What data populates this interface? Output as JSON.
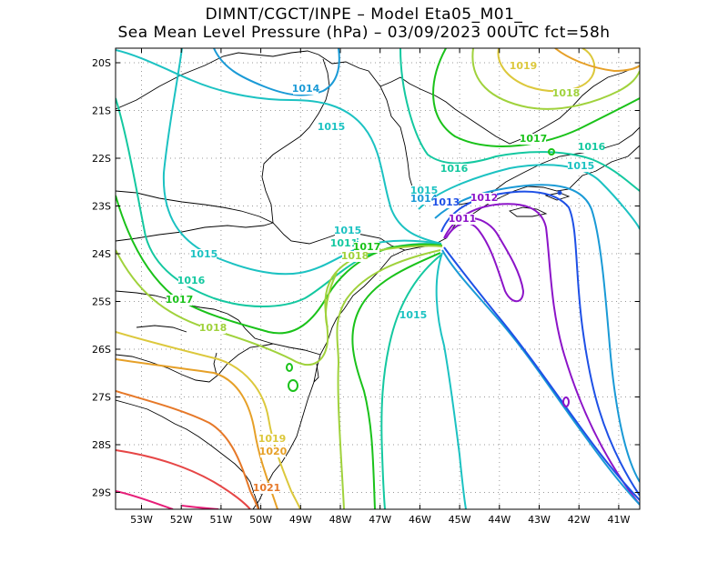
{
  "title": {
    "line1": "DIMNT/CGCT/INPE –  Model Eta05_M01_",
    "line2": "Sea Mean Level Pressure (hPa) – 03/09/2023 00UTC fct=58h"
  },
  "axes": {
    "lat_labels": [
      "20S",
      "21S",
      "22S",
      "23S",
      "24S",
      "25S",
      "26S",
      "27S",
      "28S",
      "29S"
    ],
    "lon_labels": [
      "53W",
      "52W",
      "51W",
      "50W",
      "49W",
      "48W",
      "47W",
      "46W",
      "45W",
      "44W",
      "43W",
      "42W",
      "41W"
    ]
  },
  "contour_labels": [
    {
      "text": "1014",
      "color": "#1a9ad6"
    },
    {
      "text": "1015",
      "color": "#1cc2c2"
    },
    {
      "text": "1015",
      "color": "#1cc2c2"
    },
    {
      "text": "1015",
      "color": "#1cc2c2"
    },
    {
      "text": "1016",
      "color": "#14c8a0"
    },
    {
      "text": "1017",
      "color": "#1ac21a"
    },
    {
      "text": "1018",
      "color": "#a0d23c"
    },
    {
      "text": "1019",
      "color": "#dcc83c"
    },
    {
      "text": "1020",
      "color": "#e6a028"
    },
    {
      "text": "1021",
      "color": "#e67828"
    },
    {
      "text": "1019",
      "color": "#dcc83c"
    },
    {
      "text": "1018",
      "color": "#a0d23c"
    },
    {
      "text": "1017",
      "color": "#1ac21a"
    },
    {
      "text": "1016",
      "color": "#14c8a0"
    },
    {
      "text": "1015",
      "color": "#1cc2c2"
    },
    {
      "text": "1016",
      "color": "#14c8a0"
    },
    {
      "text": "1015",
      "color": "#1cc2c2"
    },
    {
      "text": "1014",
      "color": "#1a9ad6"
    },
    {
      "text": "1013",
      "color": "#1e50e6"
    },
    {
      "text": "1012",
      "color": "#8c14c8"
    },
    {
      "text": "1011",
      "color": "#8c14c8"
    },
    {
      "text": "1015",
      "color": "#1cc2c2"
    },
    {
      "text": "1015",
      "color": "#1cc2c2"
    },
    {
      "text": "1011",
      "color": "#14c8a0"
    },
    {
      "text": "1017",
      "color": "#1ac21a"
    },
    {
      "text": "1018",
      "color": "#a0d23c"
    }
  ]
}
